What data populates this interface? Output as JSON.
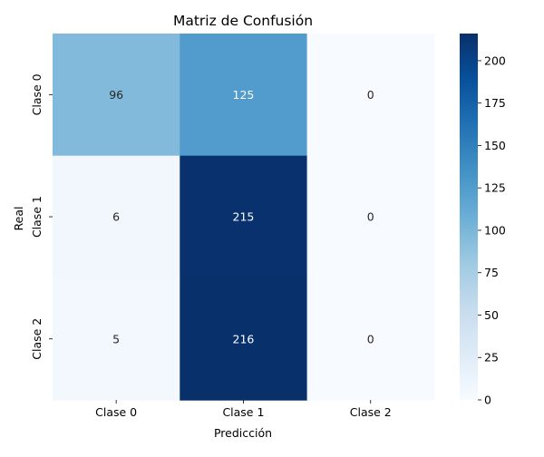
{
  "chart_data": {
    "type": "heatmap",
    "title": "Matriz de Confusión",
    "xlabel": "Predicción",
    "ylabel": "Real",
    "x_categories": [
      "Clase 0",
      "Clase 1",
      "Clase 2"
    ],
    "y_categories": [
      "Clase 0",
      "Clase 1",
      "Clase 2"
    ],
    "values": [
      [
        96,
        125,
        0
      ],
      [
        6,
        215,
        0
      ],
      [
        5,
        216,
        0
      ]
    ],
    "colormap": "Blues",
    "colorbar": {
      "range": [
        0,
        216
      ],
      "ticks": [
        "0",
        "25",
        "50",
        "75",
        "100",
        "125",
        "150",
        "175",
        "200"
      ]
    },
    "annotations": true
  }
}
